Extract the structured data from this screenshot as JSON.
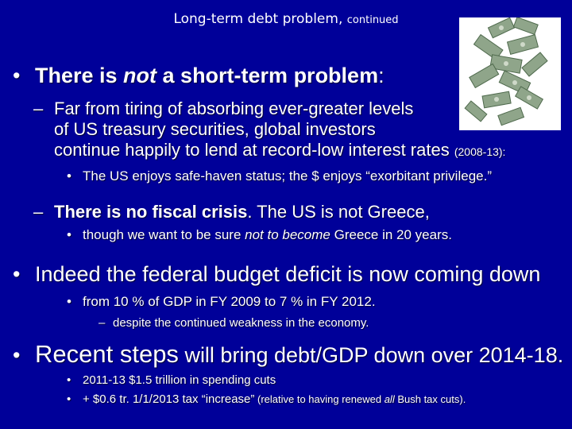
{
  "slide": {
    "title": "Long-term debt problem,",
    "title_small": "continued",
    "background_color": "#000099",
    "image_icon": "flying-dollar-bills",
    "bullets": {
      "b1_pre": "There is ",
      "b1_italic": "not",
      "b1_post": " a short-term problem",
      "b1_colon": ":",
      "sub1_line1": "Far from tiring of absorbing ever-greater levels",
      "sub1_line2": "of US treasury securities, global investors",
      "sub1_line3": "continue happily to lend at record-low interest rates",
      "sub1_years": "(2008-13):",
      "sub1_point": "The US enjoys safe-haven status; the $ enjoys “exorbitant privilege.”",
      "sub2_bold": "There is no fiscal crisis",
      "sub2_rest": ". The US is not Greece,",
      "sub2_point_pre": "though we want to be sure ",
      "sub2_point_italic": "not to become",
      "sub2_point_post": " Greece in 20 years.",
      "b2": "Indeed the federal budget deficit is now coming down",
      "b2_point": "from 10 % of GDP in FY 2009 to 7 % in FY 2012.",
      "b2_subpoint": "despite the continued weakness in the economy.",
      "b3_large": "Recent steps",
      "b3_rest": " will bring debt/GDP down over 2014-18.",
      "b3_point1": "2011-13 $1.5 trillion in spending cuts",
      "b3_point2_main": "+ $0.6 tr. 1/1/2013 tax “increase”",
      "b3_point2_note_pre": " (relative to having renewed ",
      "b3_point2_note_italic": "all",
      "b3_point2_note_post": " Bush tax cuts)."
    },
    "markers": {
      "bullet": "•",
      "dash": "–"
    }
  }
}
